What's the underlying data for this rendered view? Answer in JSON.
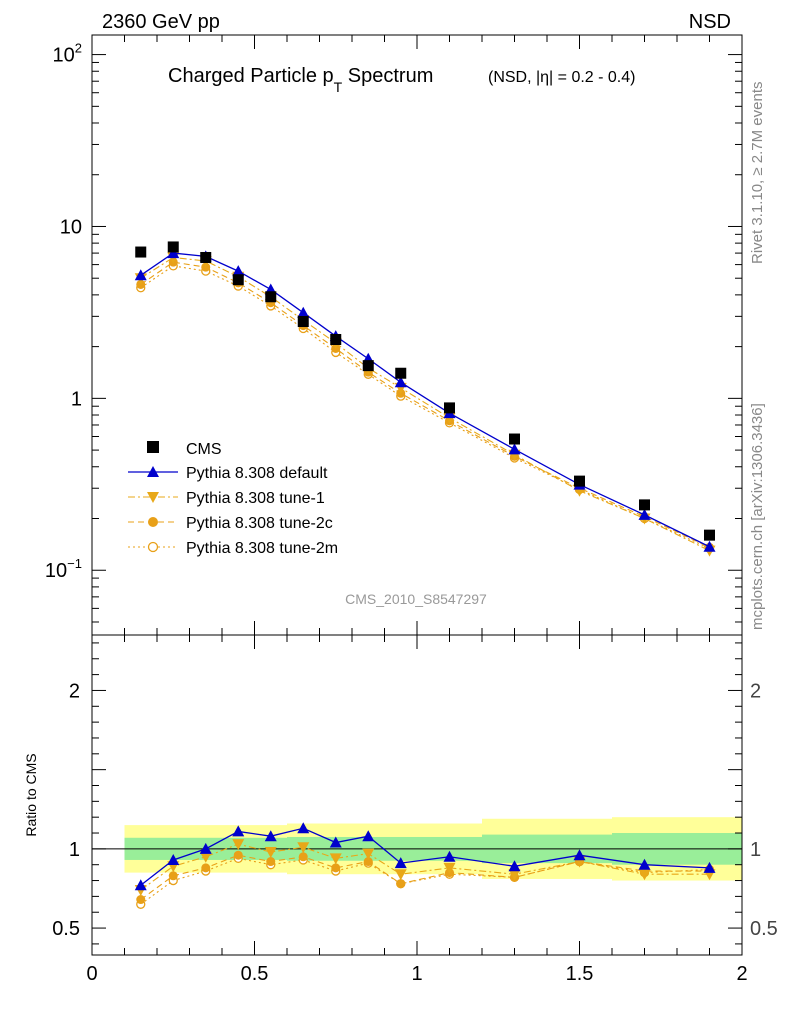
{
  "header": {
    "energy_label": "2360 GeV pp",
    "process_label": "NSD"
  },
  "side_labels": {
    "rivet": "Rivet 3.1.10, ≥ 2.7M events",
    "mcplots": "mcplots.cern.ch [arXiv:1306.3436]"
  },
  "chart_data": [
    {
      "type": "scatter",
      "panel": "main",
      "title": "Charged Particle p",
      "title_sub": "T",
      "title_tail": " Spectrum",
      "title_extra": "(NSD, |η| = 0.2 - 0.4)",
      "analysis_label": "CMS_2010_S8547297",
      "xlabel": "",
      "ylabel": "",
      "yscale": "log",
      "xlim": [
        0,
        2
      ],
      "ylim": [
        0.042,
        130
      ],
      "y_ticks": [
        {
          "value": 100,
          "base": "10",
          "exp": "2"
        },
        {
          "value": 10,
          "label": "10"
        },
        {
          "value": 1,
          "label": "1"
        },
        {
          "value": 0.1,
          "base": "10",
          "exp": "−1"
        }
      ],
      "legend_position": "center-left",
      "series": [
        {
          "name": "CMS",
          "color": "#000000",
          "marker": "square",
          "line": "none",
          "x": [
            0.15,
            0.25,
            0.35,
            0.45,
            0.55,
            0.65,
            0.75,
            0.85,
            0.95,
            1.1,
            1.3,
            1.5,
            1.7,
            1.9
          ],
          "y": [
            7.1,
            7.6,
            6.6,
            4.9,
            3.9,
            2.8,
            2.2,
            1.55,
            1.4,
            0.88,
            0.58,
            0.33,
            0.24,
            0.16
          ]
        },
        {
          "name": "Pythia 8.308 default",
          "color": "#0000cc",
          "marker": "triangle-up",
          "line": "solid",
          "x": [
            0.15,
            0.25,
            0.35,
            0.45,
            0.55,
            0.65,
            0.75,
            0.85,
            0.95,
            1.1,
            1.3,
            1.5,
            1.7,
            1.9
          ],
          "y": [
            5.2,
            7.0,
            6.7,
            5.5,
            4.3,
            3.15,
            2.3,
            1.7,
            1.24,
            0.82,
            0.505,
            0.315,
            0.21,
            0.137
          ]
        },
        {
          "name": "Pythia 8.308 tune-1",
          "color": "#e8a818",
          "marker": "triangle-down",
          "line": "dashdot",
          "x": [
            0.15,
            0.25,
            0.35,
            0.45,
            0.55,
            0.65,
            0.75,
            0.85,
            0.95,
            1.1,
            1.3,
            1.5,
            1.7,
            1.9
          ],
          "y": [
            5.0,
            6.6,
            6.3,
            5.1,
            3.9,
            2.85,
            2.1,
            1.5,
            1.15,
            0.77,
            0.47,
            0.29,
            0.2,
            0.13
          ]
        },
        {
          "name": "Pythia 8.308 tune-2c",
          "color": "#e8a018",
          "marker": "circle",
          "line": "dashed",
          "x": [
            0.15,
            0.25,
            0.35,
            0.45,
            0.55,
            0.65,
            0.75,
            0.85,
            0.95,
            1.1,
            1.3,
            1.5,
            1.7,
            1.9
          ],
          "y": [
            4.6,
            6.2,
            5.8,
            4.7,
            3.6,
            2.65,
            1.95,
            1.42,
            1.07,
            0.74,
            0.46,
            0.3,
            0.205,
            0.136
          ]
        },
        {
          "name": "Pythia 8.308 tune-2m",
          "color": "#e8a018",
          "marker": "circle-open",
          "line": "dotted",
          "x": [
            0.15,
            0.25,
            0.35,
            0.45,
            0.55,
            0.65,
            0.75,
            0.85,
            0.95,
            1.1,
            1.3,
            1.5,
            1.7,
            1.9
          ],
          "y": [
            4.4,
            5.9,
            5.5,
            4.5,
            3.45,
            2.55,
            1.85,
            1.38,
            1.03,
            0.72,
            0.45,
            0.295,
            0.2,
            0.134
          ]
        }
      ]
    },
    {
      "type": "scatter",
      "panel": "ratio",
      "xlabel": "",
      "ylabel": "Ratio to CMS",
      "xlim": [
        0,
        2
      ],
      "ylim": [
        0.33,
        2.35
      ],
      "x_ticks": [
        {
          "value": 0,
          "label": "0"
        },
        {
          "value": 0.5,
          "label": "0.5"
        },
        {
          "value": 1,
          "label": "1"
        },
        {
          "value": 1.5,
          "label": "1.5"
        },
        {
          "value": 2,
          "label": "2"
        }
      ],
      "y_ticks": [
        {
          "value": 0.5,
          "label": "0.5"
        },
        {
          "value": 1,
          "label": "1"
        },
        {
          "value": 2,
          "label": "2"
        }
      ],
      "reference_line": 1,
      "bands": [
        {
          "x0": 0.1,
          "x1": 0.2,
          "stat_lo": 0.93,
          "stat_hi": 1.07,
          "tot_lo": 0.85,
          "tot_hi": 1.15
        },
        {
          "x0": 0.2,
          "x1": 0.3,
          "stat_lo": 0.93,
          "stat_hi": 1.07,
          "tot_lo": 0.85,
          "tot_hi": 1.15
        },
        {
          "x0": 0.3,
          "x1": 0.4,
          "stat_lo": 0.93,
          "stat_hi": 1.07,
          "tot_lo": 0.85,
          "tot_hi": 1.15
        },
        {
          "x0": 0.4,
          "x1": 0.5,
          "stat_lo": 0.93,
          "stat_hi": 1.07,
          "tot_lo": 0.85,
          "tot_hi": 1.15
        },
        {
          "x0": 0.5,
          "x1": 0.6,
          "stat_lo": 0.93,
          "stat_hi": 1.07,
          "tot_lo": 0.85,
          "tot_hi": 1.15
        },
        {
          "x0": 0.6,
          "x1": 0.7,
          "stat_lo": 0.925,
          "stat_hi": 1.075,
          "tot_lo": 0.84,
          "tot_hi": 1.16
        },
        {
          "x0": 0.7,
          "x1": 0.8,
          "stat_lo": 0.925,
          "stat_hi": 1.075,
          "tot_lo": 0.84,
          "tot_hi": 1.16
        },
        {
          "x0": 0.8,
          "x1": 0.9,
          "stat_lo": 0.925,
          "stat_hi": 1.075,
          "tot_lo": 0.84,
          "tot_hi": 1.16
        },
        {
          "x0": 0.9,
          "x1": 1.0,
          "stat_lo": 0.925,
          "stat_hi": 1.075,
          "tot_lo": 0.84,
          "tot_hi": 1.16
        },
        {
          "x0": 1.0,
          "x1": 1.2,
          "stat_lo": 0.925,
          "stat_hi": 1.075,
          "tot_lo": 0.84,
          "tot_hi": 1.16
        },
        {
          "x0": 1.2,
          "x1": 1.4,
          "stat_lo": 0.91,
          "stat_hi": 1.09,
          "tot_lo": 0.81,
          "tot_hi": 1.19
        },
        {
          "x0": 1.4,
          "x1": 1.6,
          "stat_lo": 0.91,
          "stat_hi": 1.09,
          "tot_lo": 0.81,
          "tot_hi": 1.19
        },
        {
          "x0": 1.6,
          "x1": 2.0,
          "stat_lo": 0.9,
          "stat_hi": 1.1,
          "tot_lo": 0.8,
          "tot_hi": 1.2
        }
      ],
      "band_colors": {
        "stat": "#99ee99",
        "total": "#ffff99"
      },
      "series": [
        {
          "name": "Pythia 8.308 default",
          "color": "#0000cc",
          "marker": "triangle-up",
          "line": "solid",
          "x": [
            0.15,
            0.25,
            0.35,
            0.45,
            0.55,
            0.65,
            0.75,
            0.85,
            0.95,
            1.1,
            1.3,
            1.5,
            1.7,
            1.9
          ],
          "y": [
            0.77,
            0.93,
            1.0,
            1.11,
            1.08,
            1.13,
            1.04,
            1.08,
            0.91,
            0.95,
            0.89,
            0.96,
            0.9,
            0.88
          ]
        },
        {
          "name": "Pythia 8.308 tune-1",
          "color": "#e8a818",
          "marker": "triangle-down",
          "line": "dashdot",
          "x": [
            0.15,
            0.25,
            0.35,
            0.45,
            0.55,
            0.65,
            0.75,
            0.85,
            0.95,
            1.1,
            1.3,
            1.5,
            1.7,
            1.9
          ],
          "y": [
            0.74,
            0.89,
            0.95,
            1.03,
            0.98,
            1.01,
            0.94,
            0.97,
            0.84,
            0.88,
            0.84,
            0.92,
            0.84,
            0.84
          ]
        },
        {
          "name": "Pythia 8.308 tune-2c",
          "color": "#e8a018",
          "marker": "circle",
          "line": "dashed",
          "x": [
            0.15,
            0.25,
            0.35,
            0.45,
            0.55,
            0.65,
            0.75,
            0.85,
            0.95,
            1.1,
            1.3,
            1.5,
            1.7,
            1.9
          ],
          "y": [
            0.68,
            0.83,
            0.88,
            0.96,
            0.92,
            0.95,
            0.88,
            0.92,
            0.78,
            0.85,
            0.82,
            0.92,
            0.86,
            0.86
          ]
        },
        {
          "name": "Pythia 8.308 tune-2m",
          "color": "#e8a018",
          "marker": "circle-open",
          "line": "dotted",
          "x": [
            0.15,
            0.25,
            0.35,
            0.45,
            0.55,
            0.65,
            0.75,
            0.85,
            0.95,
            1.1,
            1.3,
            1.5,
            1.7,
            1.9
          ],
          "y": [
            0.65,
            0.8,
            0.86,
            0.94,
            0.9,
            0.93,
            0.86,
            0.91,
            0.78,
            0.84,
            0.82,
            0.92,
            0.85,
            0.87
          ]
        }
      ]
    }
  ]
}
